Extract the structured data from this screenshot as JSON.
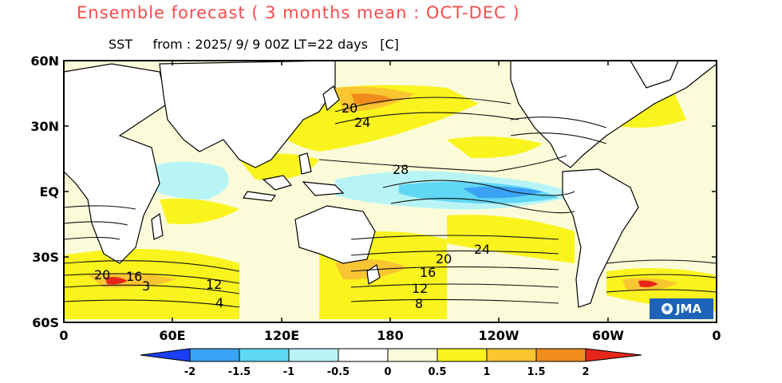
{
  "title": "Ensemble forecast ( 3 months mean : OCT-DEC )",
  "subtitle": "SST     from : 2025/ 9/ 9 00Z LT=22 days   [C]",
  "badge": "JMA",
  "colors": {
    "title": "#ff4a4a",
    "anom_neg_2": "#1b3ff5",
    "anom_neg_1_5": "#3aa2f5",
    "anom_neg_1": "#5fd7f5",
    "anom_neg_0_5": "#b8f4f6",
    "anom_neutral": "#fbfbd9",
    "anom_pos_0_5": "#f9f41d",
    "anom_pos_1": "#f9c531",
    "anom_pos_1_5": "#f08c1c",
    "anom_pos_2": "#e8251a",
    "land": "#ffffff",
    "coast": "#000000"
  },
  "map": {
    "lat_labels": [
      "60N",
      "30N",
      "EQ",
      "30S",
      "60S"
    ],
    "lon_labels": [
      "0",
      "60E",
      "120E",
      "180",
      "120W",
      "60W",
      "0"
    ],
    "contour_labels": [
      {
        "text": "20"
      },
      {
        "text": "24"
      },
      {
        "text": "28"
      },
      {
        "text": "24"
      },
      {
        "text": "20"
      },
      {
        "text": "16"
      },
      {
        "text": "12"
      },
      {
        "text": "8"
      },
      {
        "text": "20"
      },
      {
        "text": "16"
      },
      {
        "text": "12"
      },
      {
        "text": "4"
      },
      {
        "text": "3"
      }
    ]
  },
  "colorbar": {
    "labels": [
      "-2",
      "-1.5",
      "-1",
      "-0.5",
      "0",
      "0.5",
      "1",
      "1.5",
      "2"
    ]
  }
}
